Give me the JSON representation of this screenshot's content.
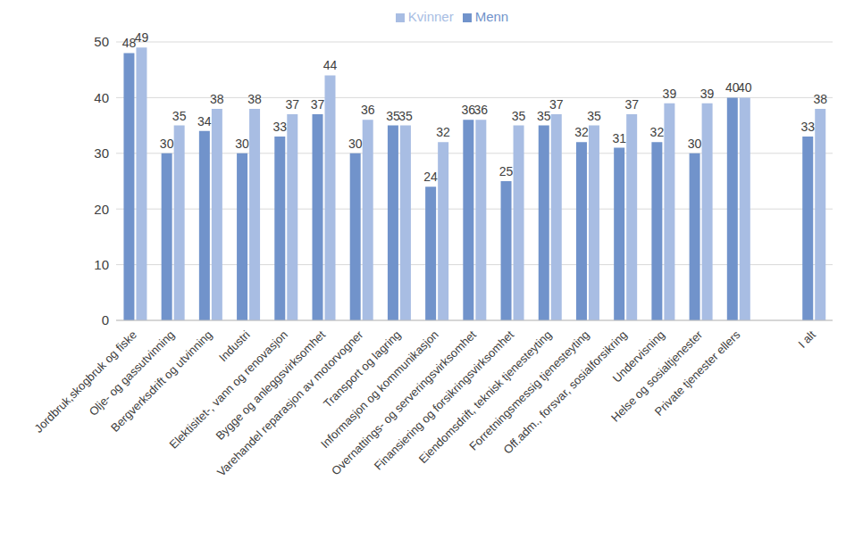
{
  "chart_data": {
    "type": "bar",
    "categories": [
      "Jordbruk,skogbruk og fiske",
      "Olje- og gassutvinning",
      "Bergverksdrift og utvinning",
      "Industri",
      "Elektisitet-, vann og renovasjon",
      "Bygge og anleggsvirksomhet",
      "Varehandel reparasjon av motorvogner",
      "Transport og lagring",
      "Informasjon og kommunikasjon",
      "Overnattings- og serveringsvirksomhet",
      "Finansiering og forsikringsvirksomhet",
      "Eiendomsdrift, teknisk tjenesteyting",
      "Forretningsmessig tjenesteyting",
      "Off.adm., forsvar, sosialforsikring",
      "Undervisning",
      "Helse og sosialtjenester",
      "Private tjenester ellers",
      null,
      "I alt"
    ],
    "series": [
      {
        "name": "Menn",
        "color": "#7193cb",
        "values": [
          48,
          30,
          34,
          30,
          33,
          37,
          30,
          35,
          24,
          36,
          25,
          35,
          32,
          31,
          32,
          30,
          40,
          null,
          33
        ]
      },
      {
        "name": "Kvinner",
        "color": "#a8bde3",
        "values": [
          49,
          35,
          38,
          38,
          37,
          44,
          36,
          35,
          32,
          36,
          35,
          37,
          35,
          37,
          39,
          39,
          40,
          null,
          38
        ]
      }
    ],
    "ylim": [
      0,
      50
    ],
    "yticks": [
      0,
      10,
      20,
      30,
      40,
      50
    ],
    "grid": true,
    "legend": "top",
    "data_labels": true
  }
}
